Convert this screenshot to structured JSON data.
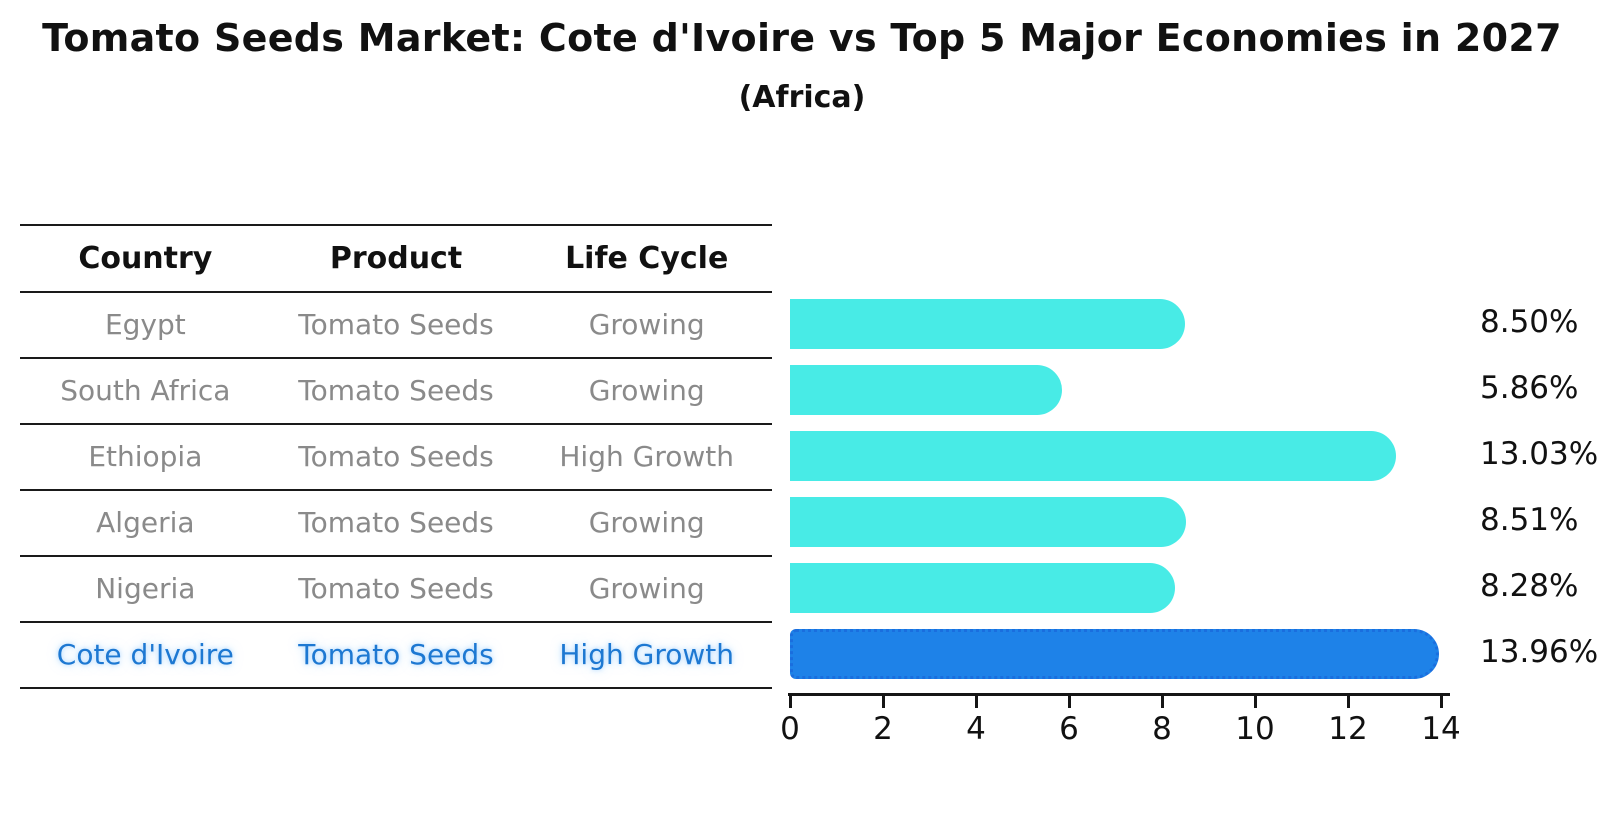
{
  "title": "Tomato Seeds Market: Cote d'Ivoire vs Top 5 Major Economies in 2027",
  "subtitle": "(Africa)",
  "table": {
    "headers": [
      "Country",
      "Product",
      "Life Cycle"
    ],
    "rows": [
      {
        "country": "Egypt",
        "product": "Tomato Seeds",
        "life_cycle": "Growing",
        "highlight": false
      },
      {
        "country": "South Africa",
        "product": "Tomato Seeds",
        "life_cycle": "Growing",
        "highlight": false
      },
      {
        "country": "Ethiopia",
        "product": "Tomato Seeds",
        "life_cycle": "High Growth",
        "highlight": false
      },
      {
        "country": "Algeria",
        "product": "Tomato Seeds",
        "life_cycle": "Growing",
        "highlight": false
      },
      {
        "country": "Nigeria",
        "product": "Tomato Seeds",
        "life_cycle": "Growing",
        "highlight": false
      },
      {
        "country": "Cote d'Ivoire",
        "product": "Tomato Seeds",
        "life_cycle": "High Growth",
        "highlight": true
      }
    ]
  },
  "chart_data": {
    "type": "bar",
    "orientation": "horizontal",
    "title": "Tomato Seeds Market: Cote d'Ivoire vs Top 5 Major Economies in 2027 (Africa)",
    "categories": [
      "Egypt",
      "South Africa",
      "Ethiopia",
      "Algeria",
      "Nigeria",
      "Cote d'Ivoire"
    ],
    "values": [
      8.5,
      5.86,
      13.03,
      8.51,
      8.28,
      13.96
    ],
    "value_labels": [
      "8.50%",
      "5.86%",
      "13.03%",
      "8.51%",
      "8.28%",
      "13.96%"
    ],
    "highlight_index": 5,
    "xlabel": "",
    "ylabel": "",
    "xlim": [
      0,
      14.15
    ],
    "x_ticks": [
      0,
      2,
      4,
      6,
      8,
      10,
      12,
      14
    ],
    "grid": false,
    "legend": "none",
    "bar_color": "#48ebe6",
    "highlight_bar_color": "#1e82e8",
    "highlight_bar_edge_color": "#1a6ede",
    "highlight_text_color": "#1d78d2"
  },
  "colors": {
    "background": "#ffffff",
    "axis": "#151515",
    "table_line": "#1a1a1a",
    "table_text": "#8a8a8a",
    "header_text": "#111111"
  }
}
